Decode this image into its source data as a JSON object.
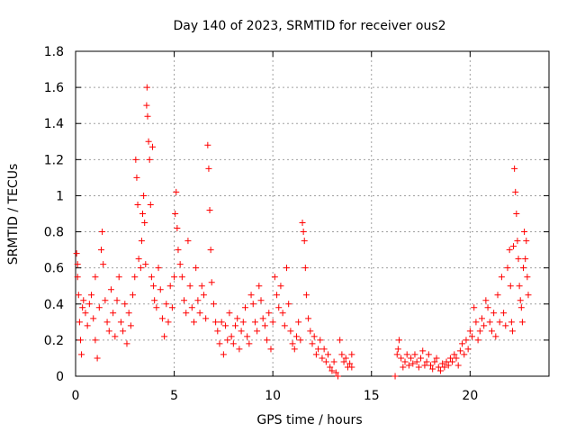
{
  "chart_data": {
    "type": "scatter",
    "title": "Day 140 of 2023, SRMTID for receiver ous2",
    "xlabel": "GPS time / hours",
    "ylabel": "SRMTID / TECUs",
    "xlim": [
      0,
      24
    ],
    "ylim": [
      0,
      1.8
    ],
    "xticks": [
      0,
      5,
      10,
      15,
      20
    ],
    "xtick_labels": [
      "0",
      "5",
      "10",
      "15",
      "20"
    ],
    "yticks": [
      0,
      0.2,
      0.4,
      0.6,
      0.8,
      1.0,
      1.2,
      1.4,
      1.6,
      1.8
    ],
    "ytick_labels": [
      "0",
      "0.2",
      "0.4",
      "0.6",
      "0.8",
      "1",
      "1.2",
      "1.4",
      "1.6",
      "1.8"
    ],
    "grid": true,
    "marker": "+",
    "color": "#ff0000",
    "series": [
      {
        "name": "SRMTID",
        "points": [
          [
            0.05,
            0.68
          ],
          [
            0.1,
            0.62
          ],
          [
            0.1,
            0.55
          ],
          [
            0.15,
            0.45
          ],
          [
            0.2,
            0.3
          ],
          [
            0.25,
            0.2
          ],
          [
            0.3,
            0.12
          ],
          [
            0.35,
            0.38
          ],
          [
            0.4,
            0.42
          ],
          [
            0.5,
            0.35
          ],
          [
            0.6,
            0.28
          ],
          [
            0.7,
            0.4
          ],
          [
            0.8,
            0.45
          ],
          [
            0.9,
            0.32
          ],
          [
            1.0,
            0.2
          ],
          [
            1.0,
            0.55
          ],
          [
            1.1,
            0.1
          ],
          [
            1.2,
            0.38
          ],
          [
            1.3,
            0.7
          ],
          [
            1.35,
            0.8
          ],
          [
            1.4,
            0.62
          ],
          [
            1.5,
            0.42
          ],
          [
            1.6,
            0.3
          ],
          [
            1.7,
            0.25
          ],
          [
            1.8,
            0.48
          ],
          [
            1.9,
            0.35
          ],
          [
            2.0,
            0.22
          ],
          [
            2.1,
            0.42
          ],
          [
            2.2,
            0.55
          ],
          [
            2.3,
            0.3
          ],
          [
            2.4,
            0.25
          ],
          [
            2.5,
            0.4
          ],
          [
            2.6,
            0.18
          ],
          [
            2.7,
            0.35
          ],
          [
            2.8,
            0.28
          ],
          [
            2.9,
            0.45
          ],
          [
            3.0,
            0.55
          ],
          [
            3.05,
            1.2
          ],
          [
            3.1,
            1.1
          ],
          [
            3.15,
            0.95
          ],
          [
            3.2,
            0.65
          ],
          [
            3.3,
            0.6
          ],
          [
            3.35,
            0.75
          ],
          [
            3.4,
            0.9
          ],
          [
            3.45,
            1.0
          ],
          [
            3.5,
            0.85
          ],
          [
            3.55,
            0.62
          ],
          [
            3.6,
            1.5
          ],
          [
            3.62,
            1.6
          ],
          [
            3.65,
            1.44
          ],
          [
            3.7,
            1.3
          ],
          [
            3.75,
            1.2
          ],
          [
            3.8,
            0.95
          ],
          [
            3.85,
            0.55
          ],
          [
            3.9,
            1.27
          ],
          [
            3.95,
            0.5
          ],
          [
            4.0,
            0.42
          ],
          [
            4.1,
            0.38
          ],
          [
            4.2,
            0.6
          ],
          [
            4.3,
            0.48
          ],
          [
            4.4,
            0.32
          ],
          [
            4.5,
            0.22
          ],
          [
            4.6,
            0.4
          ],
          [
            4.7,
            0.3
          ],
          [
            4.8,
            0.5
          ],
          [
            4.9,
            0.38
          ],
          [
            5.0,
            0.55
          ],
          [
            5.05,
            0.9
          ],
          [
            5.1,
            1.02
          ],
          [
            5.15,
            0.82
          ],
          [
            5.2,
            0.7
          ],
          [
            5.3,
            0.62
          ],
          [
            5.4,
            0.55
          ],
          [
            5.5,
            0.42
          ],
          [
            5.6,
            0.35
          ],
          [
            5.7,
            0.75
          ],
          [
            5.8,
            0.5
          ],
          [
            5.9,
            0.38
          ],
          [
            6.0,
            0.3
          ],
          [
            6.1,
            0.6
          ],
          [
            6.2,
            0.42
          ],
          [
            6.3,
            0.35
          ],
          [
            6.4,
            0.5
          ],
          [
            6.5,
            0.45
          ],
          [
            6.6,
            0.32
          ],
          [
            6.7,
            1.28
          ],
          [
            6.75,
            1.15
          ],
          [
            6.8,
            0.92
          ],
          [
            6.85,
            0.7
          ],
          [
            6.9,
            0.52
          ],
          [
            7.0,
            0.4
          ],
          [
            7.1,
            0.3
          ],
          [
            7.2,
            0.25
          ],
          [
            7.3,
            0.18
          ],
          [
            7.4,
            0.3
          ],
          [
            7.5,
            0.12
          ],
          [
            7.6,
            0.28
          ],
          [
            7.7,
            0.2
          ],
          [
            7.8,
            0.35
          ],
          [
            7.9,
            0.22
          ],
          [
            8.0,
            0.18
          ],
          [
            8.1,
            0.28
          ],
          [
            8.2,
            0.32
          ],
          [
            8.3,
            0.15
          ],
          [
            8.4,
            0.25
          ],
          [
            8.5,
            0.3
          ],
          [
            8.6,
            0.38
          ],
          [
            8.7,
            0.22
          ],
          [
            8.8,
            0.18
          ],
          [
            8.9,
            0.45
          ],
          [
            9.0,
            0.4
          ],
          [
            9.1,
            0.3
          ],
          [
            9.2,
            0.25
          ],
          [
            9.3,
            0.5
          ],
          [
            9.4,
            0.42
          ],
          [
            9.5,
            0.32
          ],
          [
            9.6,
            0.28
          ],
          [
            9.7,
            0.2
          ],
          [
            9.8,
            0.35
          ],
          [
            9.9,
            0.15
          ],
          [
            10.0,
            0.3
          ],
          [
            10.1,
            0.55
          ],
          [
            10.2,
            0.45
          ],
          [
            10.3,
            0.38
          ],
          [
            10.4,
            0.5
          ],
          [
            10.5,
            0.35
          ],
          [
            10.6,
            0.28
          ],
          [
            10.7,
            0.6
          ],
          [
            10.8,
            0.4
          ],
          [
            10.9,
            0.25
          ],
          [
            11.0,
            0.18
          ],
          [
            11.1,
            0.15
          ],
          [
            11.2,
            0.22
          ],
          [
            11.3,
            0.3
          ],
          [
            11.4,
            0.2
          ],
          [
            11.5,
            0.85
          ],
          [
            11.55,
            0.8
          ],
          [
            11.6,
            0.75
          ],
          [
            11.65,
            0.6
          ],
          [
            11.7,
            0.45
          ],
          [
            11.8,
            0.32
          ],
          [
            11.9,
            0.25
          ],
          [
            12.0,
            0.18
          ],
          [
            12.1,
            0.22
          ],
          [
            12.2,
            0.12
          ],
          [
            12.3,
            0.15
          ],
          [
            12.4,
            0.2
          ],
          [
            12.5,
            0.1
          ],
          [
            12.6,
            0.15
          ],
          [
            12.7,
            0.08
          ],
          [
            12.8,
            0.12
          ],
          [
            12.9,
            0.05
          ],
          [
            13.0,
            0.03
          ],
          [
            13.1,
            0.08
          ],
          [
            13.2,
            0.02
          ],
          [
            13.3,
            0.0
          ],
          [
            13.4,
            0.2
          ],
          [
            13.5,
            0.12
          ],
          [
            13.6,
            0.08
          ],
          [
            13.7,
            0.1
          ],
          [
            13.8,
            0.05
          ],
          [
            13.9,
            0.07
          ],
          [
            14.0,
            0.12
          ],
          [
            14.0,
            0.05
          ],
          [
            16.2,
            0.0
          ],
          [
            16.3,
            0.12
          ],
          [
            16.35,
            0.15
          ],
          [
            16.4,
            0.2
          ],
          [
            16.5,
            0.1
          ],
          [
            16.6,
            0.05
          ],
          [
            16.7,
            0.08
          ],
          [
            16.8,
            0.12
          ],
          [
            16.9,
            0.06
          ],
          [
            17.0,
            0.1
          ],
          [
            17.1,
            0.07
          ],
          [
            17.2,
            0.12
          ],
          [
            17.3,
            0.08
          ],
          [
            17.4,
            0.05
          ],
          [
            17.5,
            0.1
          ],
          [
            17.6,
            0.14
          ],
          [
            17.7,
            0.06
          ],
          [
            17.8,
            0.08
          ],
          [
            17.9,
            0.12
          ],
          [
            18.0,
            0.06
          ],
          [
            18.1,
            0.04
          ],
          [
            18.2,
            0.08
          ],
          [
            18.3,
            0.1
          ],
          [
            18.4,
            0.05
          ],
          [
            18.5,
            0.03
          ],
          [
            18.6,
            0.07
          ],
          [
            18.7,
            0.05
          ],
          [
            18.8,
            0.08
          ],
          [
            18.9,
            0.06
          ],
          [
            19.0,
            0.1
          ],
          [
            19.1,
            0.08
          ],
          [
            19.2,
            0.12
          ],
          [
            19.3,
            0.1
          ],
          [
            19.4,
            0.06
          ],
          [
            19.5,
            0.14
          ],
          [
            19.6,
            0.18
          ],
          [
            19.7,
            0.12
          ],
          [
            19.8,
            0.2
          ],
          [
            19.9,
            0.15
          ],
          [
            20.0,
            0.25
          ],
          [
            20.1,
            0.22
          ],
          [
            20.2,
            0.38
          ],
          [
            20.3,
            0.3
          ],
          [
            20.4,
            0.2
          ],
          [
            20.5,
            0.25
          ],
          [
            20.6,
            0.32
          ],
          [
            20.7,
            0.28
          ],
          [
            20.8,
            0.42
          ],
          [
            20.9,
            0.38
          ],
          [
            21.0,
            0.3
          ],
          [
            21.1,
            0.25
          ],
          [
            21.2,
            0.35
          ],
          [
            21.3,
            0.22
          ],
          [
            21.4,
            0.45
          ],
          [
            21.5,
            0.3
          ],
          [
            21.6,
            0.55
          ],
          [
            21.7,
            0.35
          ],
          [
            21.8,
            0.28
          ],
          [
            21.9,
            0.6
          ],
          [
            22.0,
            0.7
          ],
          [
            22.05,
            0.5
          ],
          [
            22.1,
            0.3
          ],
          [
            22.15,
            0.25
          ],
          [
            22.2,
            0.72
          ],
          [
            22.25,
            1.15
          ],
          [
            22.3,
            1.02
          ],
          [
            22.35,
            0.9
          ],
          [
            22.4,
            0.75
          ],
          [
            22.45,
            0.65
          ],
          [
            22.5,
            0.5
          ],
          [
            22.55,
            0.42
          ],
          [
            22.6,
            0.38
          ],
          [
            22.65,
            0.3
          ],
          [
            22.7,
            0.6
          ],
          [
            22.75,
            0.8
          ],
          [
            22.8,
            0.65
          ],
          [
            22.85,
            0.75
          ],
          [
            22.9,
            0.55
          ],
          [
            22.95,
            0.45
          ]
        ]
      }
    ]
  }
}
